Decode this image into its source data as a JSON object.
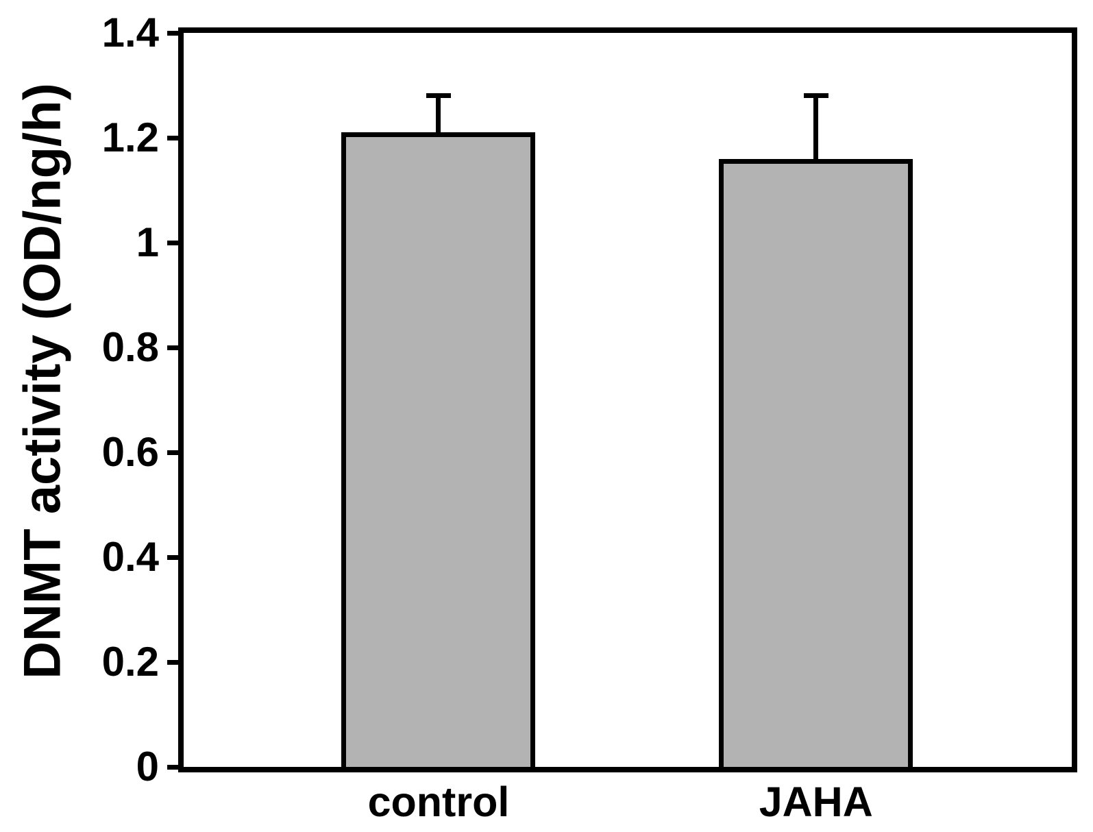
{
  "chart_data": {
    "type": "bar",
    "title": "",
    "xlabel": "",
    "ylabel": "DNMT activity (OD/ng/h)",
    "categories": [
      "control",
      "JAHA"
    ],
    "values": [
      1.21,
      1.16
    ],
    "errors_plus": [
      0.07,
      0.12
    ],
    "ylim": [
      0,
      1.4
    ],
    "yticks": [
      0,
      0.2,
      0.4,
      0.6,
      0.8,
      1,
      1.2,
      1.4
    ],
    "ytick_labels": [
      "0",
      "0.2",
      "0.4",
      "0.6",
      "0.8",
      "1",
      "1.2",
      "1.4"
    ],
    "grid": false,
    "legend": "none",
    "frame": true,
    "bar_fill_color": "#b3b3b3",
    "axis_color": "#000000",
    "background_color": "#ffffff"
  }
}
